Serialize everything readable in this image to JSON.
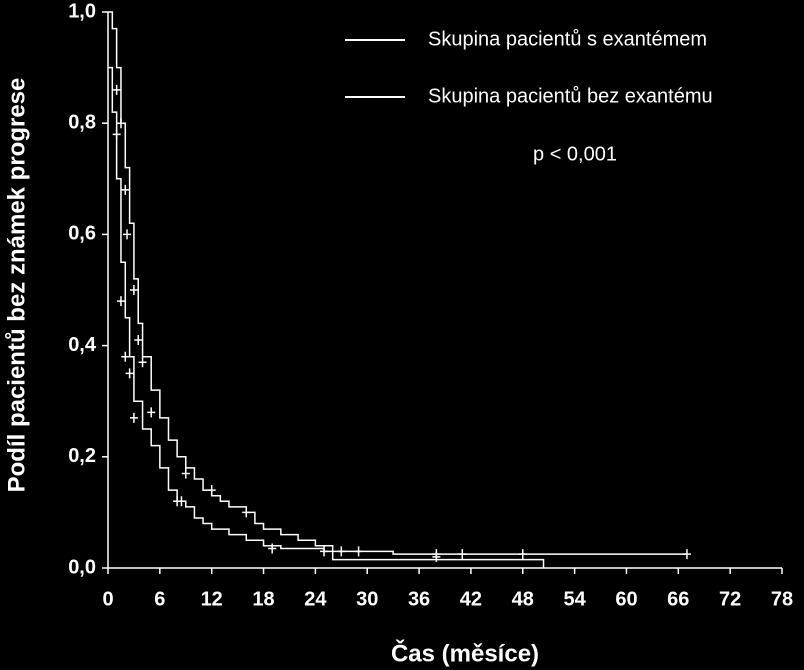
{
  "chart_data": {
    "type": "kaplan-meier",
    "x_label": "Čas (měsíce)",
    "y_label": "Podíl pacientů bez známek progrese",
    "annotation": "p < 0,001",
    "xlim": [
      0,
      78
    ],
    "ylim": [
      0,
      1
    ],
    "xticks": [
      0,
      6,
      12,
      18,
      24,
      30,
      36,
      42,
      48,
      54,
      60,
      66,
      72,
      78
    ],
    "yticks": [
      {
        "value": 0,
        "label": "0,0"
      },
      {
        "value": 0.2,
        "label": "0,2"
      },
      {
        "value": 0.4,
        "label": "0,4"
      },
      {
        "value": 0.6,
        "label": "0,6"
      },
      {
        "value": 0.8,
        "label": "0,8"
      },
      {
        "value": 1,
        "label": "1,0"
      }
    ],
    "series": [
      {
        "name": "Skupina pacientů s exantémem",
        "color": "#ffffff",
        "x": [
          0,
          0.5,
          1,
          1.5,
          2,
          2.5,
          3,
          3.5,
          4,
          5,
          6,
          7,
          8,
          9,
          10,
          11,
          12,
          13,
          14,
          16,
          17,
          18,
          20,
          22,
          24,
          26,
          33,
          67
        ],
        "values": [
          1.0,
          0.97,
          0.9,
          0.8,
          0.72,
          0.62,
          0.52,
          0.44,
          0.38,
          0.32,
          0.27,
          0.23,
          0.2,
          0.18,
          0.16,
          0.14,
          0.13,
          0.12,
          0.11,
          0.1,
          0.08,
          0.07,
          0.06,
          0.05,
          0.04,
          0.03,
          0.025,
          0.025
        ],
        "censor_x": [
          1,
          1.5,
          2,
          2.2,
          3,
          3.5,
          4,
          5,
          9,
          12,
          16,
          27,
          29,
          38,
          41,
          48,
          67
        ],
        "censor_values": [
          0.86,
          0.8,
          0.68,
          0.6,
          0.5,
          0.41,
          0.37,
          0.28,
          0.17,
          0.14,
          0.1,
          0.03,
          0.03,
          0.025,
          0.025,
          0.025,
          0.025
        ]
      },
      {
        "name": "Skupina pacientů bez exantému",
        "color": "#ffffff",
        "x": [
          0,
          0.5,
          1,
          1.5,
          2,
          2.5,
          3,
          4,
          5,
          6,
          7,
          8,
          9,
          10,
          11,
          12,
          14,
          16,
          18,
          20,
          25,
          26,
          50.4
        ],
        "values": [
          0.9,
          0.82,
          0.7,
          0.55,
          0.45,
          0.38,
          0.3,
          0.25,
          0.22,
          0.18,
          0.14,
          0.12,
          0.11,
          0.09,
          0.08,
          0.07,
          0.06,
          0.05,
          0.04,
          0.035,
          0.03,
          0.015,
          0
        ],
        "censor_x": [
          1,
          1.5,
          2,
          2.5,
          3,
          8,
          8.5,
          19,
          25,
          38
        ],
        "censor_values": [
          0.78,
          0.48,
          0.38,
          0.35,
          0.27,
          0.12,
          0.12,
          0.035,
          0.03,
          0.02
        ]
      }
    ]
  }
}
